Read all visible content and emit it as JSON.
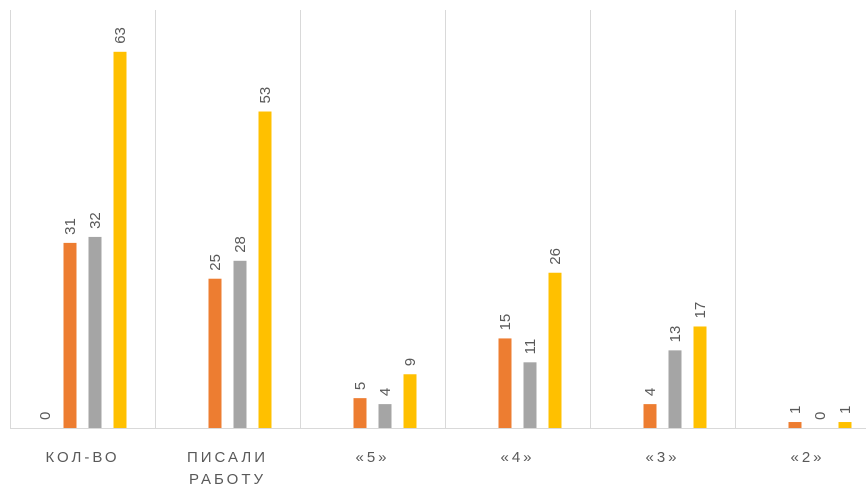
{
  "chart_data": {
    "type": "bar",
    "categories": [
      "КОЛ-ВО",
      "ПИСАЛИ РАБОТУ",
      "«5»",
      "«4»",
      "«3»",
      "«2»"
    ],
    "series": [
      {
        "color": "#4472c4",
        "values": [
          0,
          null,
          null,
          null,
          null,
          null
        ]
      },
      {
        "color": "#ed7d31",
        "values": [
          31,
          25,
          5,
          15,
          4,
          1
        ]
      },
      {
        "color": "#a5a5a5",
        "values": [
          32,
          28,
          4,
          11,
          13,
          0
        ]
      },
      {
        "color": "#ffc000",
        "values": [
          63,
          53,
          9,
          26,
          17,
          1
        ]
      }
    ],
    "ylim": [
      0,
      70
    ]
  }
}
